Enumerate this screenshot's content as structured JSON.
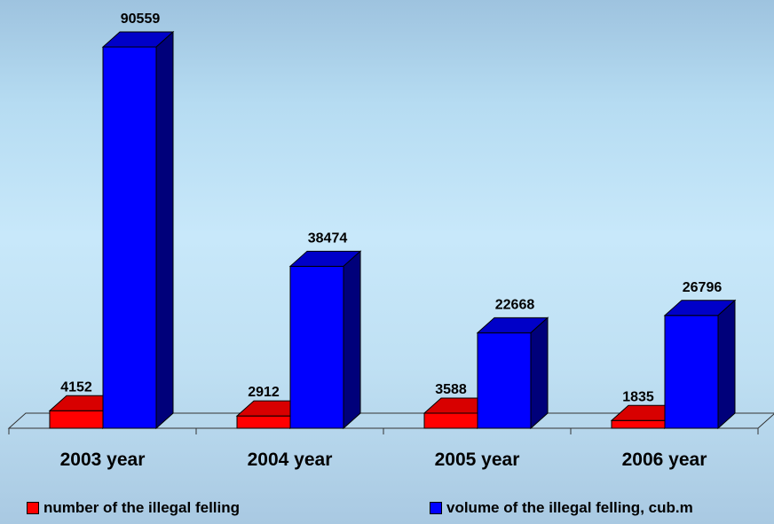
{
  "chart_data": {
    "type": "bar",
    "categories": [
      "2003 year",
      "2004 year",
      "2005 year",
      "2006 year"
    ],
    "series": [
      {
        "name": "number of the illegal felling",
        "values": [
          4152,
          2912,
          3588,
          1835
        ],
        "color": "#ff0000"
      },
      {
        "name": "volume of the illegal felling, cub.m",
        "values": [
          90559,
          38474,
          22668,
          26796
        ],
        "color": "#0000ff"
      }
    ],
    "data_labels": true,
    "ylim": [
      0,
      90559
    ],
    "grid": false,
    "legend_position": "bottom"
  }
}
